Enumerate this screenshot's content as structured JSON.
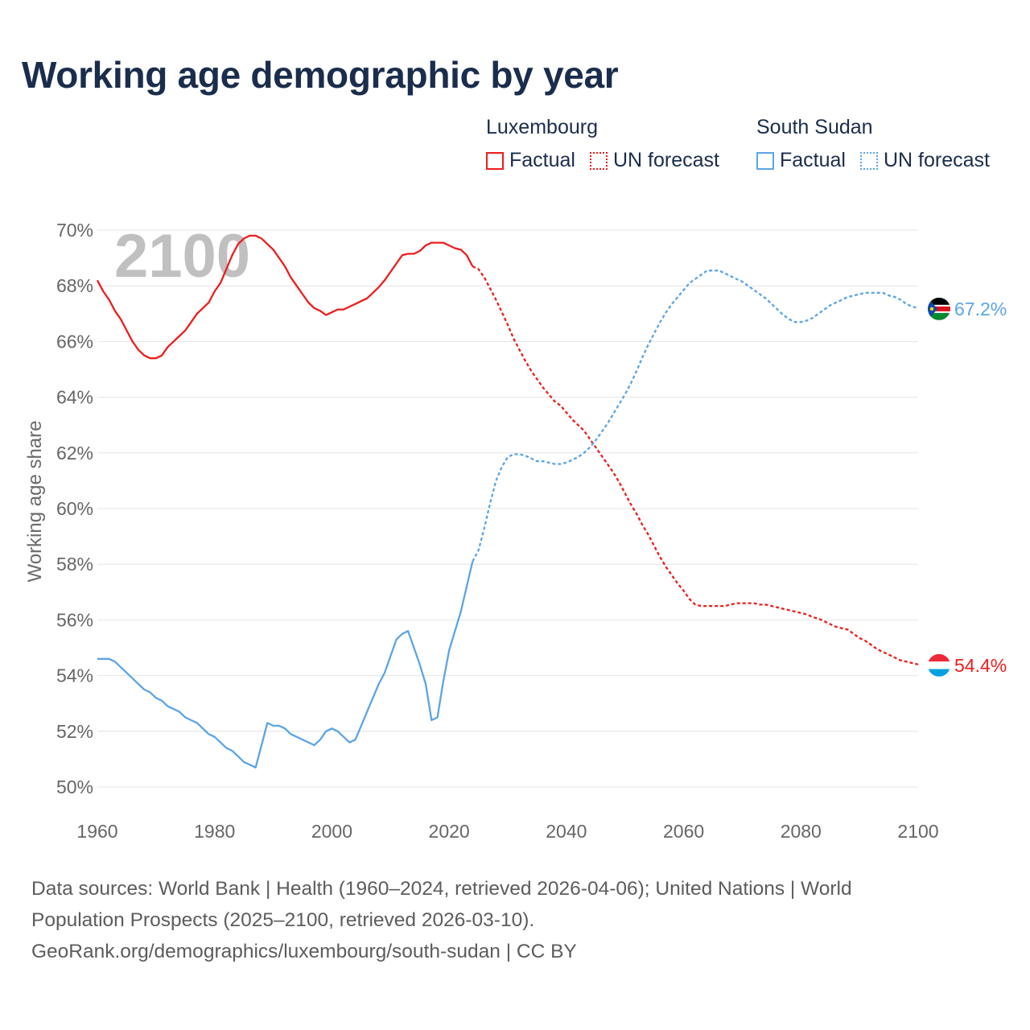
{
  "title": "Working age demographic by year",
  "legend": [
    {
      "country": "Luxembourg",
      "factual_label": "Factual",
      "forecast_label": "UN forecast",
      "color": "#ee1c1c"
    },
    {
      "country": "South Sudan",
      "factual_label": "Factual",
      "forecast_label": "UN forecast",
      "color": "#5ca4e6"
    }
  ],
  "footer": {
    "line1": "Data sources: World Bank | Health (1960–2024, retrieved 2026-04-06); United Nations | World",
    "line2": "Population Prospects (2025–2100, retrieved 2026-03-10).",
    "line3": "GeoRank.org/demographics/luxembourg/south-sudan | CC BY"
  },
  "chart_data": {
    "type": "line",
    "title": "Working age demographic by year",
    "year_overlay": "2100",
    "xlabel": "",
    "ylabel": "Working age share",
    "xlim": [
      1960,
      2100
    ],
    "ylim": [
      50,
      70
    ],
    "x_ticks": [
      1960,
      1980,
      2000,
      2020,
      2040,
      2060,
      2080,
      2100
    ],
    "y_ticks": [
      50,
      52,
      54,
      56,
      58,
      60,
      62,
      64,
      66,
      68,
      70
    ],
    "y_tick_labels": [
      "50%",
      "52%",
      "54%",
      "56%",
      "58%",
      "60%",
      "62%",
      "64%",
      "66%",
      "68%",
      "70%"
    ],
    "grid": true,
    "factual_end_year": 2024,
    "series": [
      {
        "name": "Luxembourg",
        "color": "#ee1c1c",
        "end_label": "54.4%",
        "flag_colors": [
          "#ed2939",
          "#ffffff",
          "#00a1de"
        ],
        "points": [
          [
            1960,
            68.2
          ],
          [
            1961,
            67.8
          ],
          [
            1962,
            67.5
          ],
          [
            1963,
            67.1
          ],
          [
            1964,
            66.8
          ],
          [
            1965,
            66.4
          ],
          [
            1966,
            66.0
          ],
          [
            1967,
            65.7
          ],
          [
            1968,
            65.5
          ],
          [
            1969,
            65.4
          ],
          [
            1970,
            65.4
          ],
          [
            1971,
            65.5
          ],
          [
            1972,
            65.8
          ],
          [
            1973,
            66.0
          ],
          [
            1974,
            66.2
          ],
          [
            1975,
            66.4
          ],
          [
            1976,
            66.7
          ],
          [
            1977,
            67.0
          ],
          [
            1978,
            67.2
          ],
          [
            1979,
            67.4
          ],
          [
            1980,
            67.8
          ],
          [
            1981,
            68.1
          ],
          [
            1982,
            68.6
          ],
          [
            1983,
            69.1
          ],
          [
            1984,
            69.5
          ],
          [
            1985,
            69.7
          ],
          [
            1986,
            69.8
          ],
          [
            1987,
            69.8
          ],
          [
            1988,
            69.7
          ],
          [
            1989,
            69.5
          ],
          [
            1990,
            69.3
          ],
          [
            1991,
            69.0
          ],
          [
            1992,
            68.7
          ],
          [
            1993,
            68.3
          ],
          [
            1994,
            68.0
          ],
          [
            1995,
            67.7
          ],
          [
            1996,
            67.4
          ],
          [
            1997,
            67.2
          ],
          [
            1998,
            67.1
          ],
          [
            1999,
            66.95
          ],
          [
            2000,
            67.05
          ],
          [
            2001,
            67.15
          ],
          [
            2002,
            67.15
          ],
          [
            2003,
            67.25
          ],
          [
            2004,
            67.35
          ],
          [
            2005,
            67.45
          ],
          [
            2006,
            67.55
          ],
          [
            2007,
            67.75
          ],
          [
            2008,
            67.95
          ],
          [
            2009,
            68.2
          ],
          [
            2010,
            68.5
          ],
          [
            2011,
            68.8
          ],
          [
            2012,
            69.1
          ],
          [
            2013,
            69.15
          ],
          [
            2014,
            69.15
          ],
          [
            2015,
            69.25
          ],
          [
            2016,
            69.45
          ],
          [
            2017,
            69.55
          ],
          [
            2018,
            69.55
          ],
          [
            2019,
            69.55
          ],
          [
            2020,
            69.45
          ],
          [
            2021,
            69.35
          ],
          [
            2022,
            69.3
          ],
          [
            2023,
            69.1
          ],
          [
            2024,
            68.7
          ],
          [
            2025,
            68.6
          ],
          [
            2026,
            68.3
          ],
          [
            2027,
            67.9
          ],
          [
            2028,
            67.5
          ],
          [
            2029,
            67.05
          ],
          [
            2030,
            66.6
          ],
          [
            2031,
            66.1
          ],
          [
            2032,
            65.7
          ],
          [
            2033,
            65.3
          ],
          [
            2034,
            64.95
          ],
          [
            2035,
            64.65
          ],
          [
            2036,
            64.35
          ],
          [
            2037,
            64.1
          ],
          [
            2038,
            63.85
          ],
          [
            2039,
            63.7
          ],
          [
            2040,
            63.45
          ],
          [
            2041,
            63.2
          ],
          [
            2042,
            63.0
          ],
          [
            2043,
            62.8
          ],
          [
            2044,
            62.5
          ],
          [
            2045,
            62.2
          ],
          [
            2046,
            61.9
          ],
          [
            2047,
            61.6
          ],
          [
            2048,
            61.3
          ],
          [
            2049,
            60.95
          ],
          [
            2050,
            60.55
          ],
          [
            2051,
            60.15
          ],
          [
            2052,
            59.8
          ],
          [
            2053,
            59.4
          ],
          [
            2054,
            59.05
          ],
          [
            2055,
            58.65
          ],
          [
            2056,
            58.25
          ],
          [
            2057,
            57.9
          ],
          [
            2058,
            57.6
          ],
          [
            2059,
            57.3
          ],
          [
            2060,
            57.05
          ],
          [
            2061,
            56.75
          ],
          [
            2062,
            56.55
          ],
          [
            2063,
            56.5
          ],
          [
            2064,
            56.5
          ],
          [
            2065,
            56.5
          ],
          [
            2066,
            56.5
          ],
          [
            2067,
            56.5
          ],
          [
            2068,
            56.55
          ],
          [
            2069,
            56.6
          ],
          [
            2070,
            56.6
          ],
          [
            2071,
            56.6
          ],
          [
            2072,
            56.6
          ],
          [
            2073,
            56.55
          ],
          [
            2074,
            56.55
          ],
          [
            2075,
            56.5
          ],
          [
            2076,
            56.45
          ],
          [
            2077,
            56.4
          ],
          [
            2078,
            56.35
          ],
          [
            2079,
            56.3
          ],
          [
            2080,
            56.25
          ],
          [
            2081,
            56.2
          ],
          [
            2082,
            56.1
          ],
          [
            2083,
            56.05
          ],
          [
            2084,
            55.95
          ],
          [
            2085,
            55.85
          ],
          [
            2086,
            55.75
          ],
          [
            2087,
            55.7
          ],
          [
            2088,
            55.65
          ],
          [
            2089,
            55.5
          ],
          [
            2090,
            55.35
          ],
          [
            2091,
            55.25
          ],
          [
            2092,
            55.1
          ],
          [
            2093,
            54.95
          ],
          [
            2094,
            54.85
          ],
          [
            2095,
            54.75
          ],
          [
            2096,
            54.65
          ],
          [
            2097,
            54.55
          ],
          [
            2098,
            54.5
          ],
          [
            2099,
            54.45
          ],
          [
            2100,
            54.4
          ]
        ]
      },
      {
        "name": "South Sudan",
        "color": "#5ca4e6",
        "end_label": "67.2%",
        "flag_colors": [
          "#000000",
          "#ffffff",
          "#da121a",
          "#078930",
          "#0f47af",
          "#fcdd09"
        ],
        "points": [
          [
            1960,
            54.6
          ],
          [
            1961,
            54.6
          ],
          [
            1962,
            54.6
          ],
          [
            1963,
            54.5
          ],
          [
            1964,
            54.3
          ],
          [
            1965,
            54.1
          ],
          [
            1966,
            53.9
          ],
          [
            1967,
            53.7
          ],
          [
            1968,
            53.5
          ],
          [
            1969,
            53.4
          ],
          [
            1970,
            53.2
          ],
          [
            1971,
            53.1
          ],
          [
            1972,
            52.9
          ],
          [
            1973,
            52.8
          ],
          [
            1974,
            52.7
          ],
          [
            1975,
            52.5
          ],
          [
            1976,
            52.4
          ],
          [
            1977,
            52.3
          ],
          [
            1978,
            52.1
          ],
          [
            1979,
            51.9
          ],
          [
            1980,
            51.8
          ],
          [
            1981,
            51.6
          ],
          [
            1982,
            51.4
          ],
          [
            1983,
            51.3
          ],
          [
            1984,
            51.1
          ],
          [
            1985,
            50.9
          ],
          [
            1986,
            50.8
          ],
          [
            1987,
            50.7
          ],
          [
            1988,
            51.5
          ],
          [
            1989,
            52.3
          ],
          [
            1990,
            52.2
          ],
          [
            1991,
            52.2
          ],
          [
            1992,
            52.1
          ],
          [
            1993,
            51.9
          ],
          [
            1994,
            51.8
          ],
          [
            1995,
            51.7
          ],
          [
            1996,
            51.6
          ],
          [
            1997,
            51.5
          ],
          [
            1998,
            51.7
          ],
          [
            1999,
            52.0
          ],
          [
            2000,
            52.1
          ],
          [
            2001,
            52.0
          ],
          [
            2002,
            51.8
          ],
          [
            2003,
            51.6
          ],
          [
            2004,
            51.7
          ],
          [
            2005,
            52.2
          ],
          [
            2006,
            52.7
          ],
          [
            2007,
            53.2
          ],
          [
            2008,
            53.7
          ],
          [
            2009,
            54.1
          ],
          [
            2010,
            54.7
          ],
          [
            2011,
            55.3
          ],
          [
            2012,
            55.5
          ],
          [
            2013,
            55.6
          ],
          [
            2014,
            55.0
          ],
          [
            2015,
            54.4
          ],
          [
            2016,
            53.7
          ],
          [
            2017,
            52.4
          ],
          [
            2018,
            52.5
          ],
          [
            2019,
            53.8
          ],
          [
            2020,
            54.9
          ],
          [
            2021,
            55.6
          ],
          [
            2022,
            56.3
          ],
          [
            2023,
            57.2
          ],
          [
            2024,
            58.1
          ],
          [
            2025,
            58.5
          ],
          [
            2026,
            59.3
          ],
          [
            2027,
            60.2
          ],
          [
            2028,
            61.0
          ],
          [
            2029,
            61.5
          ],
          [
            2030,
            61.85
          ],
          [
            2031,
            61.95
          ],
          [
            2032,
            61.95
          ],
          [
            2033,
            61.9
          ],
          [
            2034,
            61.8
          ],
          [
            2035,
            61.7
          ],
          [
            2036,
            61.7
          ],
          [
            2037,
            61.65
          ],
          [
            2038,
            61.6
          ],
          [
            2039,
            61.6
          ],
          [
            2040,
            61.65
          ],
          [
            2041,
            61.75
          ],
          [
            2042,
            61.85
          ],
          [
            2043,
            62.0
          ],
          [
            2044,
            62.2
          ],
          [
            2045,
            62.45
          ],
          [
            2046,
            62.75
          ],
          [
            2047,
            63.05
          ],
          [
            2048,
            63.4
          ],
          [
            2049,
            63.75
          ],
          [
            2050,
            64.1
          ],
          [
            2051,
            64.5
          ],
          [
            2052,
            64.95
          ],
          [
            2053,
            65.45
          ],
          [
            2054,
            65.9
          ],
          [
            2055,
            66.3
          ],
          [
            2056,
            66.7
          ],
          [
            2057,
            67.05
          ],
          [
            2058,
            67.35
          ],
          [
            2059,
            67.6
          ],
          [
            2060,
            67.85
          ],
          [
            2061,
            68.1
          ],
          [
            2062,
            68.25
          ],
          [
            2063,
            68.4
          ],
          [
            2064,
            68.55
          ],
          [
            2065,
            68.55
          ],
          [
            2066,
            68.55
          ],
          [
            2067,
            68.45
          ],
          [
            2068,
            68.35
          ],
          [
            2069,
            68.25
          ],
          [
            2070,
            68.15
          ],
          [
            2071,
            68.0
          ],
          [
            2072,
            67.85
          ],
          [
            2073,
            67.7
          ],
          [
            2074,
            67.55
          ],
          [
            2075,
            67.35
          ],
          [
            2076,
            67.15
          ],
          [
            2077,
            66.95
          ],
          [
            2078,
            66.8
          ],
          [
            2079,
            66.7
          ],
          [
            2080,
            66.7
          ],
          [
            2081,
            66.75
          ],
          [
            2082,
            66.85
          ],
          [
            2083,
            67.0
          ],
          [
            2084,
            67.15
          ],
          [
            2085,
            67.3
          ],
          [
            2086,
            67.4
          ],
          [
            2087,
            67.5
          ],
          [
            2088,
            67.6
          ],
          [
            2089,
            67.65
          ],
          [
            2090,
            67.7
          ],
          [
            2091,
            67.75
          ],
          [
            2092,
            67.75
          ],
          [
            2093,
            67.75
          ],
          [
            2094,
            67.75
          ],
          [
            2095,
            67.65
          ],
          [
            2096,
            67.6
          ],
          [
            2097,
            67.5
          ],
          [
            2098,
            67.35
          ],
          [
            2099,
            67.25
          ],
          [
            2100,
            67.2
          ]
        ]
      }
    ]
  }
}
